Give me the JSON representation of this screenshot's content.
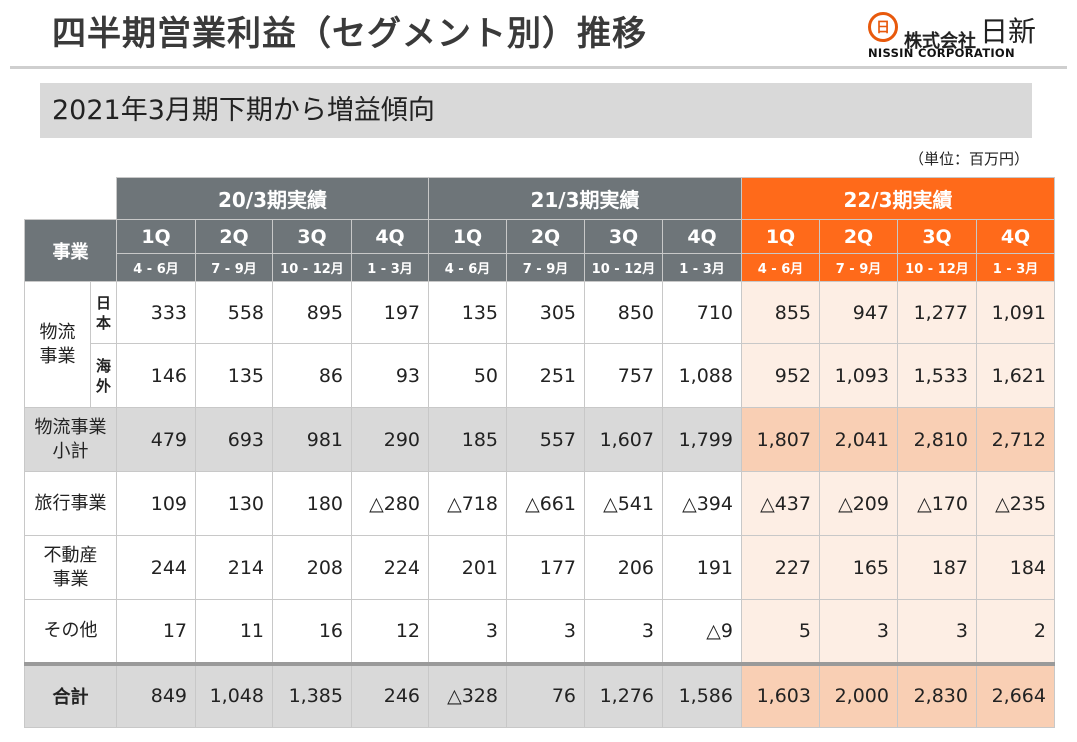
{
  "header": {
    "title": "四半期営業利益（セグメント別）推移",
    "logo_mark": "日",
    "logo_text_small": "株式会社",
    "logo_text_big": "日新",
    "logo_text_en": "NISSIN CORPORATION"
  },
  "subtitle": "2021年3月期下期から増益傾向",
  "unit_note": "（単位：百万円）",
  "table": {
    "segment_header": "事業",
    "periods": [
      "20/3期実績",
      "21/3期実績",
      "22/3期実績"
    ],
    "quarters": [
      "1Q",
      "2Q",
      "3Q",
      "4Q",
      "1Q",
      "2Q",
      "3Q",
      "4Q",
      "1Q",
      "2Q",
      "3Q",
      "4Q"
    ],
    "months": [
      "4 - 6月",
      "7 - 9月",
      "10 - 12月",
      "1 - 3月",
      "4 - 6月",
      "7 - 9月",
      "10 - 12月",
      "1 - 3月",
      "4 - 6月",
      "7 - 9月",
      "10 - 12月",
      "1 - 3月"
    ],
    "logistics_label": "物流\n事業",
    "rows": [
      {
        "label": "日\n本",
        "values": [
          "333",
          "558",
          "895",
          "197",
          "135",
          "305",
          "850",
          "710",
          "855",
          "947",
          "1,277",
          "1,091"
        ]
      },
      {
        "label": "海\n外",
        "values": [
          "146",
          "135",
          "86",
          "93",
          "50",
          "251",
          "757",
          "1,088",
          "952",
          "1,093",
          "1,533",
          "1,621"
        ]
      },
      {
        "label": "物流事業\n小計",
        "values": [
          "479",
          "693",
          "981",
          "290",
          "185",
          "557",
          "1,607",
          "1,799",
          "1,807",
          "2,041",
          "2,810",
          "2,712"
        ]
      },
      {
        "label": "旅行事業",
        "values": [
          "109",
          "130",
          "180",
          "△280",
          "△718",
          "△661",
          "△541",
          "△394",
          "△437",
          "△209",
          "△170",
          "△235"
        ]
      },
      {
        "label": "不動産\n事業",
        "values": [
          "244",
          "214",
          "208",
          "224",
          "201",
          "177",
          "206",
          "191",
          "227",
          "165",
          "187",
          "184"
        ]
      },
      {
        "label": "その他",
        "values": [
          "17",
          "11",
          "16",
          "12",
          "3",
          "3",
          "3",
          "△9",
          "5",
          "3",
          "3",
          "2"
        ]
      },
      {
        "label": "合計",
        "values": [
          "849",
          "1,048",
          "1,385",
          "246",
          "△328",
          "76",
          "1,276",
          "1,586",
          "1,603",
          "2,000",
          "2,830",
          "2,664"
        ]
      }
    ]
  },
  "colors": {
    "header_gray": "#6e7579",
    "header_orange": "#ff6a1a",
    "subtotal_gray": "#d9d9d9",
    "orange_light": "#fdeee4",
    "orange_dark": "#f9cfb4"
  }
}
